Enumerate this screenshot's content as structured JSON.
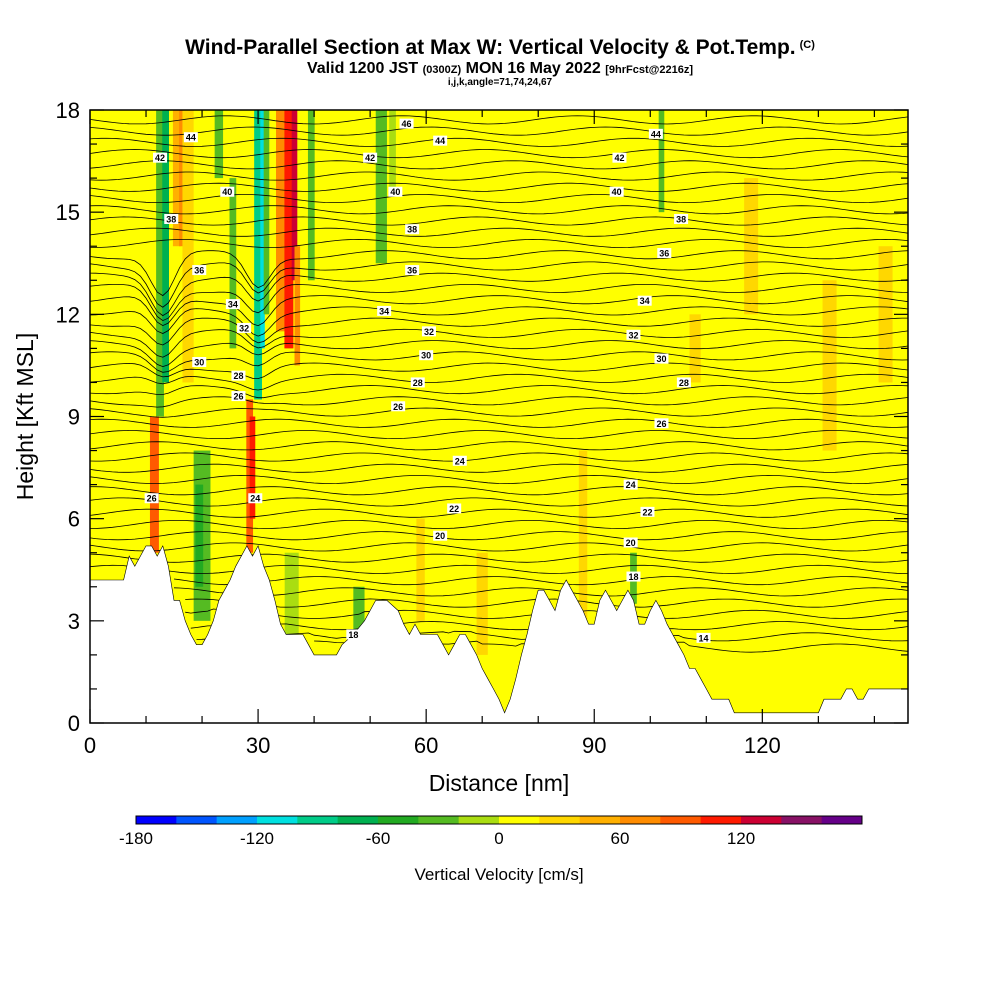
{
  "header": {
    "title": "Wind-Parallel Section at Max W: Vertical Velocity & Pot.Temp.",
    "title_mark": "(C)",
    "valid_prefix": "Valid 1200 JST",
    "valid_utc": "(0300Z)",
    "valid_date": "MON 16 May 2022",
    "forecast": "[9hrFcst@2216z]",
    "indices": "i,j,k,angle=71,74,24,67"
  },
  "chart_data": {
    "type": "heatmap",
    "xlabel": "Distance [nm]",
    "ylabel": "Height [Kft MSL]",
    "xlim": [
      0,
      146
    ],
    "ylim": [
      0,
      18
    ],
    "x_ticks": [
      {
        "value": 0,
        "label": "0"
      },
      {
        "value": 30,
        "label": "30"
      },
      {
        "value": 60,
        "label": "60"
      },
      {
        "value": 90,
        "label": "90"
      },
      {
        "value": 120,
        "label": "120"
      }
    ],
    "y_ticks": [
      {
        "value": 0,
        "label": "0"
      },
      {
        "value": 3,
        "label": "3"
      },
      {
        "value": 6,
        "label": "6"
      },
      {
        "value": 9,
        "label": "9"
      },
      {
        "value": 12,
        "label": "12"
      },
      {
        "value": 15,
        "label": "15"
      },
      {
        "value": 18,
        "label": "18"
      }
    ],
    "colorbar": {
      "title": "Vertical Velocity [cm/s]",
      "min": -180,
      "step": 20,
      "colors": [
        "#0000ff",
        "#0055ff",
        "#00a0ff",
        "#00e0e0",
        "#00cc88",
        "#00b050",
        "#22aa22",
        "#55bb22",
        "#aadd11",
        "#ffff00",
        "#ffd700",
        "#ffb000",
        "#ff8c00",
        "#ff5a00",
        "#ff1a00",
        "#cc0033",
        "#881166",
        "#660088"
      ],
      "labels": [
        {
          "value": -180,
          "label": "-180"
        },
        {
          "value": -120,
          "label": "-120"
        },
        {
          "value": -60,
          "label": "-60"
        },
        {
          "value": 0,
          "label": "0"
        },
        {
          "value": 60,
          "label": "60"
        },
        {
          "value": 120,
          "label": "120"
        }
      ]
    },
    "terrain_height_kft": [
      [
        0,
        4.2
      ],
      [
        6,
        4.2
      ],
      [
        7,
        4.9
      ],
      [
        8,
        4.6
      ],
      [
        9,
        4.9
      ],
      [
        10,
        5.2
      ],
      [
        11,
        5.2
      ],
      [
        12,
        4.9
      ],
      [
        13,
        5.2
      ],
      [
        14,
        4.6
      ],
      [
        15,
        3.6
      ],
      [
        16,
        3.6
      ],
      [
        17,
        3.0
      ],
      [
        18,
        2.6
      ],
      [
        19,
        2.3
      ],
      [
        20,
        2.3
      ],
      [
        21,
        2.6
      ],
      [
        22,
        3.0
      ],
      [
        23,
        3.6
      ],
      [
        24,
        3.9
      ],
      [
        25,
        4.2
      ],
      [
        26,
        4.6
      ],
      [
        27,
        4.9
      ],
      [
        28,
        5.2
      ],
      [
        29,
        4.9
      ],
      [
        30,
        5.2
      ],
      [
        31,
        4.6
      ],
      [
        32,
        4.2
      ],
      [
        33,
        3.6
      ],
      [
        34,
        2.9
      ],
      [
        35,
        2.6
      ],
      [
        36,
        2.6
      ],
      [
        37,
        2.6
      ],
      [
        38,
        2.6
      ],
      [
        39,
        2.3
      ],
      [
        40,
        2.0
      ],
      [
        44,
        2.0
      ],
      [
        45,
        2.3
      ],
      [
        47,
        2.6
      ],
      [
        49,
        3.0
      ],
      [
        51,
        3.6
      ],
      [
        53,
        3.6
      ],
      [
        55,
        3.3
      ],
      [
        56,
        2.9
      ],
      [
        57,
        2.6
      ],
      [
        58,
        2.9
      ],
      [
        59,
        2.6
      ],
      [
        60,
        2.6
      ],
      [
        62,
        2.6
      ],
      [
        63,
        2.3
      ],
      [
        64,
        2.0
      ],
      [
        65,
        2.3
      ],
      [
        66,
        2.6
      ],
      [
        67,
        2.6
      ],
      [
        68,
        2.3
      ],
      [
        69,
        2.0
      ],
      [
        70,
        1.6
      ],
      [
        71,
        1.3
      ],
      [
        72,
        1.0
      ],
      [
        73,
        0.7
      ],
      [
        74,
        0.3
      ],
      [
        75,
        0.7
      ],
      [
        76,
        1.3
      ],
      [
        77,
        2.0
      ],
      [
        78,
        2.6
      ],
      [
        79,
        3.3
      ],
      [
        80,
        3.9
      ],
      [
        81,
        3.9
      ],
      [
        82,
        3.6
      ],
      [
        83,
        3.3
      ],
      [
        84,
        3.9
      ],
      [
        85,
        4.2
      ],
      [
        86,
        3.9
      ],
      [
        87,
        3.6
      ],
      [
        88,
        3.3
      ],
      [
        89,
        2.9
      ],
      [
        90,
        2.9
      ],
      [
        91,
        3.6
      ],
      [
        92,
        3.9
      ],
      [
        93,
        3.6
      ],
      [
        94,
        3.3
      ],
      [
        95,
        3.6
      ],
      [
        96,
        3.9
      ],
      [
        97,
        3.6
      ],
      [
        98,
        2.9
      ],
      [
        99,
        2.9
      ],
      [
        100,
        3.3
      ],
      [
        101,
        3.6
      ],
      [
        102,
        3.3
      ],
      [
        103,
        2.9
      ],
      [
        104,
        2.6
      ],
      [
        105,
        2.3
      ],
      [
        106,
        2.0
      ],
      [
        107,
        1.6
      ],
      [
        108,
        1.6
      ],
      [
        109,
        1.3
      ],
      [
        110,
        1.0
      ],
      [
        111,
        0.7
      ],
      [
        114,
        0.7
      ],
      [
        115,
        0.3
      ],
      [
        130,
        0.3
      ],
      [
        131,
        0.7
      ],
      [
        134,
        0.7
      ],
      [
        135,
        1.0
      ],
      [
        136,
        1.0
      ],
      [
        137,
        0.7
      ],
      [
        138,
        0.7
      ],
      [
        139,
        1.0
      ],
      [
        146,
        1.0
      ]
    ],
    "velocity_columns": [
      {
        "x": 11.5,
        "width": 1.6,
        "y0": 5.0,
        "y1": 9.0,
        "value": 90
      },
      {
        "x": 12.5,
        "width": 1.4,
        "y0": 9.0,
        "y1": 18.0,
        "value": -30
      },
      {
        "x": 13.5,
        "width": 1.2,
        "y0": 10.0,
        "y1": 18.0,
        "value": -70
      },
      {
        "x": 15.5,
        "width": 1.4,
        "y0": 14.0,
        "y1": 18.0,
        "value": 40
      },
      {
        "x": 16.5,
        "width": 1.2,
        "y0": 14.0,
        "y1": 18.0,
        "value": 60
      },
      {
        "x": 17.5,
        "width": 2.0,
        "y0": 10.0,
        "y1": 18.0,
        "value": 35
      },
      {
        "x": 20.0,
        "width": 3.0,
        "y0": 3.0,
        "y1": 8.0,
        "value": -40
      },
      {
        "x": 19.5,
        "width": 1.4,
        "y0": 4.0,
        "y1": 7.0,
        "value": -60
      },
      {
        "x": 23.0,
        "width": 1.5,
        "y0": 16.0,
        "y1": 18.0,
        "value": -40
      },
      {
        "x": 25.5,
        "width": 1.2,
        "y0": 11.0,
        "y1": 16.0,
        "value": -30
      },
      {
        "x": 28.5,
        "width": 1.2,
        "y0": 5.0,
        "y1": 9.5,
        "value": 90
      },
      {
        "x": 29.0,
        "width": 1.0,
        "y0": 6.0,
        "y1": 9.0,
        "value": 110
      },
      {
        "x": 30.0,
        "width": 1.4,
        "y0": 9.5,
        "y1": 18.0,
        "value": -90
      },
      {
        "x": 30.8,
        "width": 0.8,
        "y0": 11.0,
        "y1": 18.0,
        "value": -110
      },
      {
        "x": 31.5,
        "width": 1.0,
        "y0": 12.0,
        "y1": 18.0,
        "value": -40
      },
      {
        "x": 34.0,
        "width": 1.6,
        "y0": 11.5,
        "y1": 18.0,
        "value": 60
      },
      {
        "x": 35.5,
        "width": 1.6,
        "y0": 11.0,
        "y1": 18.0,
        "value": 100
      },
      {
        "x": 36.5,
        "width": 1.0,
        "y0": 13.0,
        "y1": 18.0,
        "value": 130
      },
      {
        "x": 37.0,
        "width": 1.0,
        "y0": 10.5,
        "y1": 14.0,
        "value": 60
      },
      {
        "x": 39.5,
        "width": 1.2,
        "y0": 13.0,
        "y1": 18.0,
        "value": -40
      },
      {
        "x": 36.0,
        "width": 2.5,
        "y0": 2.6,
        "y1": 5.0,
        "value": -20
      },
      {
        "x": 48.0,
        "width": 2.0,
        "y0": 2.5,
        "y1": 4.0,
        "value": -40
      },
      {
        "x": 52.0,
        "width": 2.0,
        "y0": 13.5,
        "y1": 18.0,
        "value": -40
      },
      {
        "x": 54.0,
        "width": 1.2,
        "y0": 15.5,
        "y1": 18.0,
        "value": -20
      },
      {
        "x": 59.0,
        "width": 1.5,
        "y0": 3.0,
        "y1": 6.0,
        "value": 30
      },
      {
        "x": 70.0,
        "width": 2.0,
        "y0": 2.0,
        "y1": 5.0,
        "value": 30
      },
      {
        "x": 88.0,
        "width": 1.5,
        "y0": 3.0,
        "y1": 8.0,
        "value": 30
      },
      {
        "x": 97.0,
        "width": 1.2,
        "y0": 3.5,
        "y1": 5.0,
        "value": -40
      },
      {
        "x": 102.0,
        "width": 1.0,
        "y0": 15.0,
        "y1": 18.0,
        "value": -30
      },
      {
        "x": 108.0,
        "width": 2.0,
        "y0": 10.0,
        "y1": 12.0,
        "value": 30
      },
      {
        "x": 118.0,
        "width": 2.5,
        "y0": 12.0,
        "y1": 16.0,
        "value": 25
      },
      {
        "x": 132.0,
        "width": 2.5,
        "y0": 8.0,
        "y1": 13.0,
        "value": 25
      },
      {
        "x": 142.0,
        "width": 2.5,
        "y0": 10.0,
        "y1": 14.0,
        "value": 25
      }
    ],
    "contour_labels": [
      {
        "x": 18.0,
        "y": 17.2,
        "label": "44"
      },
      {
        "x": 12.5,
        "y": 16.6,
        "label": "42"
      },
      {
        "x": 24.5,
        "y": 15.6,
        "label": "40"
      },
      {
        "x": 14.5,
        "y": 14.8,
        "label": "38"
      },
      {
        "x": 19.5,
        "y": 13.3,
        "label": "36"
      },
      {
        "x": 25.5,
        "y": 12.3,
        "label": "34"
      },
      {
        "x": 27.5,
        "y": 11.6,
        "label": "32"
      },
      {
        "x": 19.5,
        "y": 10.6,
        "label": "30"
      },
      {
        "x": 26.5,
        "y": 10.2,
        "label": "28"
      },
      {
        "x": 26.5,
        "y": 9.6,
        "label": "26"
      },
      {
        "x": 11.0,
        "y": 6.6,
        "label": "26"
      },
      {
        "x": 29.5,
        "y": 6.6,
        "label": "24"
      },
      {
        "x": 56.5,
        "y": 17.6,
        "label": "46"
      },
      {
        "x": 62.5,
        "y": 17.1,
        "label": "44"
      },
      {
        "x": 50.0,
        "y": 16.6,
        "label": "42"
      },
      {
        "x": 54.5,
        "y": 15.6,
        "label": "40"
      },
      {
        "x": 57.5,
        "y": 14.5,
        "label": "38"
      },
      {
        "x": 57.5,
        "y": 13.3,
        "label": "36"
      },
      {
        "x": 52.5,
        "y": 12.1,
        "label": "34"
      },
      {
        "x": 60.5,
        "y": 11.5,
        "label": "32"
      },
      {
        "x": 60.0,
        "y": 10.8,
        "label": "30"
      },
      {
        "x": 58.5,
        "y": 10.0,
        "label": "28"
      },
      {
        "x": 55.0,
        "y": 9.3,
        "label": "26"
      },
      {
        "x": 66.0,
        "y": 7.7,
        "label": "24"
      },
      {
        "x": 65.0,
        "y": 6.3,
        "label": "22"
      },
      {
        "x": 62.5,
        "y": 5.5,
        "label": "20"
      },
      {
        "x": 47.0,
        "y": 2.6,
        "label": "18"
      },
      {
        "x": 101.0,
        "y": 17.3,
        "label": "44"
      },
      {
        "x": 94.5,
        "y": 16.6,
        "label": "42"
      },
      {
        "x": 94.0,
        "y": 15.6,
        "label": "40"
      },
      {
        "x": 105.5,
        "y": 14.8,
        "label": "38"
      },
      {
        "x": 102.5,
        "y": 13.8,
        "label": "36"
      },
      {
        "x": 99.0,
        "y": 12.4,
        "label": "34"
      },
      {
        "x": 97.0,
        "y": 11.4,
        "label": "32"
      },
      {
        "x": 102.0,
        "y": 10.7,
        "label": "30"
      },
      {
        "x": 106.0,
        "y": 10.0,
        "label": "28"
      },
      {
        "x": 102.0,
        "y": 8.8,
        "label": "26"
      },
      {
        "x": 96.5,
        "y": 7.0,
        "label": "24"
      },
      {
        "x": 99.5,
        "y": 6.2,
        "label": "22"
      },
      {
        "x": 96.5,
        "y": 5.3,
        "label": "20"
      },
      {
        "x": 97.0,
        "y": 4.3,
        "label": "18"
      },
      {
        "x": 109.5,
        "y": 2.5,
        "label": "14"
      }
    ]
  }
}
